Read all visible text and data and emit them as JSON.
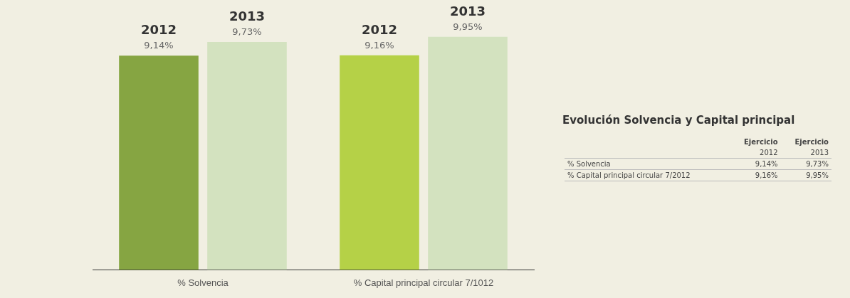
{
  "chart_data": {
    "type": "bar",
    "title": "Evolución Solvencia y Capital principal",
    "categories": [
      "% Solvencia",
      "% Capital principal circular 7/1012"
    ],
    "series": [
      {
        "name": "2012",
        "colors": [
          "#86a542",
          "#b5d147"
        ],
        "values": [
          9.14,
          9.16
        ],
        "value_labels": [
          "9,14%",
          "9,16%"
        ]
      },
      {
        "name": "2013",
        "colors": [
          "#d3e2bf",
          "#d3e2bf"
        ],
        "values": [
          9.73,
          9.95
        ],
        "value_labels": [
          "9,73%",
          "9,95%"
        ]
      }
    ],
    "grid": false,
    "legend": false,
    "annotations": [
      "Ejercicio",
      "% Solvencia",
      "% Capital principal circular 7/2012"
    ]
  }
}
